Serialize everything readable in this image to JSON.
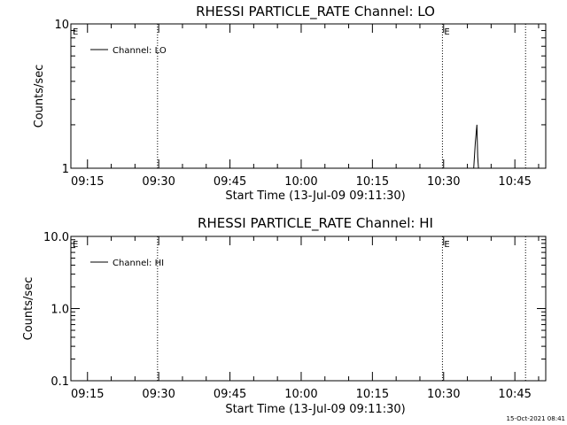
{
  "chart_data": [
    {
      "type": "line",
      "title": "RHESSI PARTICLE_RATE Channel: LO",
      "xlabel": "Start Time (13-Jul-09 09:11:30)",
      "ylabel": "Counts/sec",
      "y_scale": "log",
      "ylim": [
        1,
        10
      ],
      "y_tick_labels": [
        "1",
        "10"
      ],
      "x_tick_labels": [
        "09:15",
        "09:30",
        "09:45",
        "10:00",
        "10:15",
        "10:30",
        "10:45"
      ],
      "xlim": [
        "09:11:30",
        "10:51:30"
      ],
      "legend": {
        "placement": "top-left",
        "entries": [
          "Channel: LO"
        ]
      },
      "markers": [
        {
          "label": "E",
          "time": "09:11:30",
          "line": false
        },
        {
          "label": "",
          "time": "09:29:45",
          "line": true
        },
        {
          "label": "E",
          "time": "10:29:45",
          "line": true
        },
        {
          "label": "",
          "time": "10:47:15",
          "line": true
        }
      ],
      "series": [
        {
          "x": [
            "10:36:20",
            "10:36:40",
            "10:37:00",
            "10:37:10",
            "10:37:20"
          ],
          "y": [
            1.0,
            1.5,
            2.0,
            1.2,
            1.0
          ]
        }
      ]
    },
    {
      "type": "line",
      "title": "RHESSI PARTICLE_RATE Channel: HI",
      "xlabel": "Start Time (13-Jul-09 09:11:30)",
      "ylabel": "Counts/sec",
      "y_scale": "log",
      "ylim": [
        0.1,
        10
      ],
      "y_tick_labels": [
        "0.1",
        "1.0",
        "10.0"
      ],
      "x_tick_labels": [
        "09:15",
        "09:30",
        "09:45",
        "10:00",
        "10:15",
        "10:30",
        "10:45"
      ],
      "xlim": [
        "09:11:30",
        "10:51:30"
      ],
      "legend": {
        "placement": "top-left",
        "entries": [
          "Channel: HI"
        ]
      },
      "markers": [
        {
          "label": "E",
          "time": "09:11:30",
          "line": false
        },
        {
          "label": "",
          "time": "09:29:45",
          "line": true
        },
        {
          "label": "E",
          "time": "10:29:45",
          "line": true
        },
        {
          "label": "",
          "time": "10:47:15",
          "line": true
        }
      ],
      "series": []
    }
  ],
  "footer": {
    "timestamp": "15-Oct-2021 08:41"
  }
}
